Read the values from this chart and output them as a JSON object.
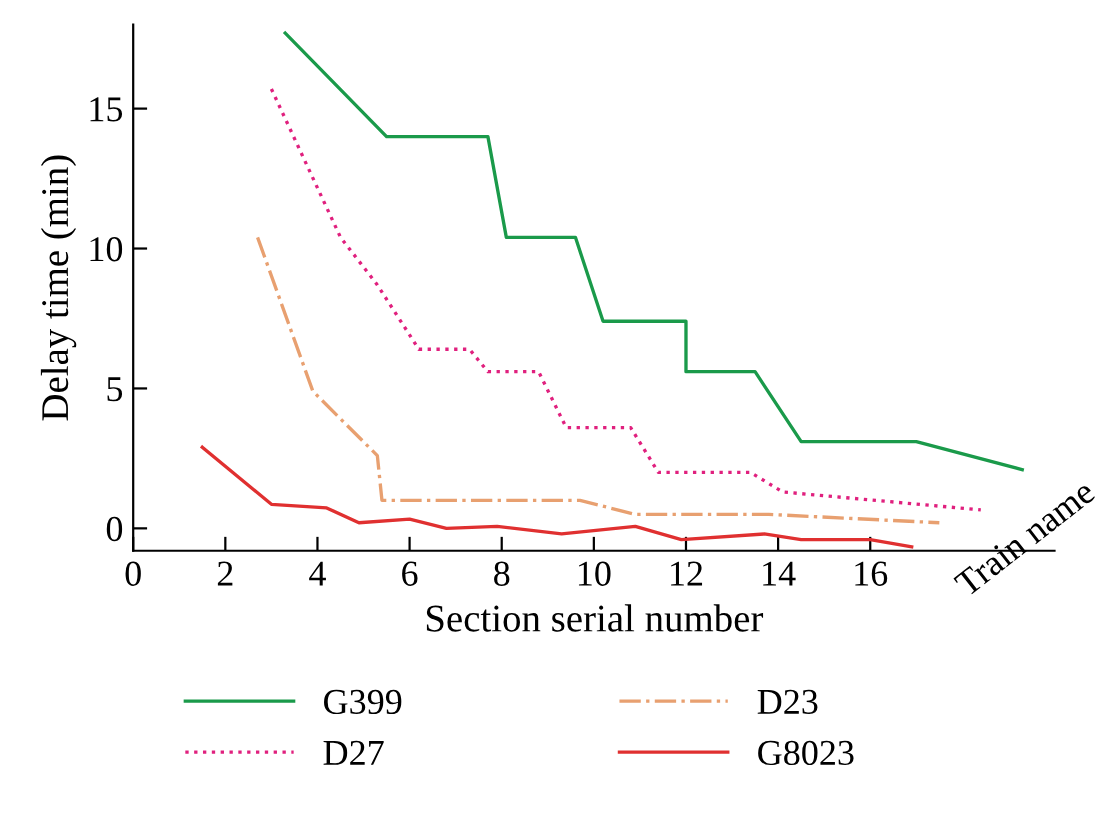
{
  "chart_data": {
    "type": "line",
    "xlabel": "Section serial number",
    "ylabel": "Delay time (min)",
    "annotations": [
      "Train name"
    ],
    "xlim": [
      0,
      20
    ],
    "ylim": [
      -0.8,
      18
    ],
    "xticks": [
      0,
      2,
      4,
      6,
      8,
      10,
      12,
      14,
      16
    ],
    "yticks": [
      0,
      5,
      10,
      15
    ],
    "grid": false,
    "legend": "bottom",
    "marker": "none",
    "series": [
      {
        "name": "G399",
        "color": "#1a9a4a",
        "line_style": "solid",
        "x": [
          3.3,
          5.5,
          7.7,
          8.1,
          9.6,
          10.2,
          12.0,
          12.0,
          13.5,
          14.5,
          17.0,
          19.3
        ],
        "values": [
          17.7,
          14.0,
          14.0,
          10.4,
          10.4,
          7.4,
          7.4,
          5.6,
          5.6,
          3.1,
          3.1,
          2.1
        ]
      },
      {
        "name": "D27",
        "color": "#e0207e",
        "line_style": "dotted",
        "x": [
          3.0,
          4.5,
          5.3,
          6.2,
          7.3,
          7.7,
          8.8,
          9.4,
          10.8,
          11.4,
          13.4,
          14.1,
          18.4
        ],
        "values": [
          15.7,
          10.4,
          8.7,
          6.4,
          6.4,
          5.6,
          5.6,
          3.6,
          3.6,
          2.0,
          2.0,
          1.3,
          0.66
        ]
      },
      {
        "name": "D23",
        "color": "#e8a070",
        "line_style": "dashdot",
        "x": [
          2.7,
          3.9,
          5.3,
          5.4,
          9.7,
          10.9,
          13.8,
          17.5
        ],
        "values": [
          10.4,
          4.9,
          2.6,
          1.0,
          1.0,
          0.5,
          0.5,
          0.2
        ]
      },
      {
        "name": "G8023",
        "color": "#e03030",
        "line_style": "solid",
        "x": [
          1.5,
          3.0,
          4.2,
          4.9,
          6.0,
          6.8,
          7.9,
          9.3,
          10.9,
          11.9,
          13.7,
          14.5,
          16.0,
          16.9
        ],
        "values": [
          2.9,
          0.86,
          0.73,
          0.2,
          0.33,
          0.0,
          0.07,
          -0.2,
          0.07,
          -0.4,
          -0.2,
          -0.4,
          -0.4,
          -0.66
        ]
      }
    ]
  }
}
